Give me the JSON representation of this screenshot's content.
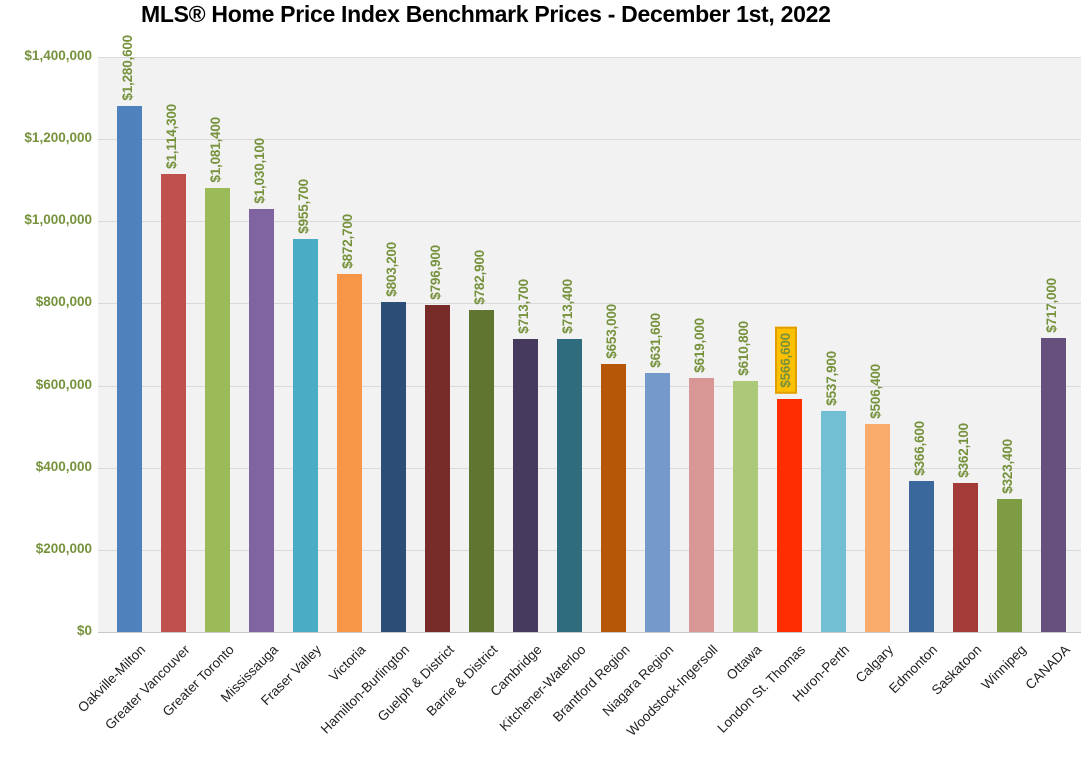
{
  "chart_data": {
    "type": "bar",
    "title": "MLS® Home Price Index Benchmark Prices - December 1st, 2022",
    "xlabel": "",
    "ylabel": "",
    "ylim": [
      0,
      1400000
    ],
    "ytick_step": 200000,
    "ytick_labels": [
      "$0",
      "$200,000",
      "$400,000",
      "$600,000",
      "$800,000",
      "$1,000,000",
      "$1,200,000",
      "$1,400,000"
    ],
    "grid": true,
    "legend": false,
    "highlighted_index": 15,
    "categories": [
      "Oakville-Milton",
      "Greater Vancouver",
      "Greater Toronto",
      "Mississauga",
      "Fraser Valley",
      "Victoria",
      "Hamilton-Burlington",
      "Guelph & District",
      "Barrie & District",
      "Cambridge",
      "Kitchener-Waterloo",
      "Brantford Region",
      "Niagara Region",
      "Woodstock-Ingersoll",
      "Ottawa",
      "London St. Thomas",
      "Huron-Perth",
      "Calgary",
      "Edmonton",
      "Saskatoon",
      "Winnipeg",
      "CANADA"
    ],
    "values": [
      1280600,
      1114300,
      1081400,
      1030100,
      955700,
      872700,
      803200,
      796900,
      782900,
      713700,
      713400,
      653000,
      631600,
      619000,
      610800,
      566600,
      537900,
      506400,
      366600,
      362100,
      323400,
      717000
    ],
    "value_labels": [
      "$1,280,600",
      "$1,114,300",
      "$1,081,400",
      "$1,030,100",
      "$955,700",
      "$872,700",
      "$803,200",
      "$796,900",
      "$782,900",
      "$713,700",
      "$713,400",
      "$653,000",
      "$631,600",
      "$619,000",
      "$610,800",
      "$566,600",
      "$537,900",
      "$506,400",
      "$366,600",
      "$362,100",
      "$323,400",
      "$717,000"
    ],
    "bar_colors": [
      "#4F81BD",
      "#C0504D",
      "#9BBB59",
      "#8064A2",
      "#4BACC6",
      "#F79646",
      "#2C4D75",
      "#772C2A",
      "#5F7530",
      "#463A5E",
      "#2E6C7E",
      "#B65708",
      "#7599CB",
      "#D89795",
      "#ACC979",
      "#FF2D00",
      "#72BFD3",
      "#F9AC6B",
      "#3A679C",
      "#A33C38",
      "#7D9C44",
      "#66507E"
    ],
    "colors": {
      "label_green": "#76923C",
      "plot_bg": "#F2F2F2",
      "gridline": "#DADADA",
      "highlight_bg": "#FFC000",
      "highlight_border": "#E2A000",
      "category_text": "#1f1f1f",
      "title_text": "#000000"
    }
  }
}
